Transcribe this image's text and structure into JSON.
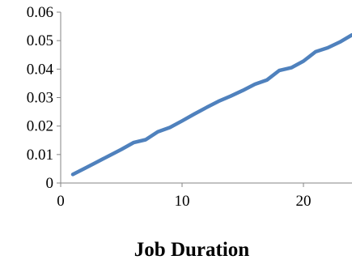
{
  "chart_data": {
    "type": "line",
    "title": "",
    "xlabel": "Job Duration",
    "ylabel": "",
    "xlim": [
      0,
      24
    ],
    "ylim": [
      0,
      0.06
    ],
    "x_ticks": [
      "0",
      "10",
      "20"
    ],
    "y_ticks": [
      "0",
      "0.01",
      "0.02",
      "0.03",
      "0.04",
      "0.05",
      "0.06"
    ],
    "grid": false,
    "legend": "none",
    "series": [
      {
        "color": "#4f81bd",
        "x": [
          1,
          2,
          3,
          4,
          5,
          6,
          7,
          8,
          9,
          10,
          11,
          12,
          13,
          14,
          15,
          16,
          17,
          18,
          19,
          20,
          21,
          22,
          23,
          24
        ],
        "y": [
          0.003,
          0.0052,
          0.0074,
          0.0096,
          0.0118,
          0.0142,
          0.0152,
          0.018,
          0.0195,
          0.0218,
          0.0242,
          0.0265,
          0.0287,
          0.0305,
          0.0325,
          0.0347,
          0.0362,
          0.0395,
          0.0405,
          0.0428,
          0.0461,
          0.0475,
          0.0495,
          0.052
        ]
      }
    ]
  }
}
